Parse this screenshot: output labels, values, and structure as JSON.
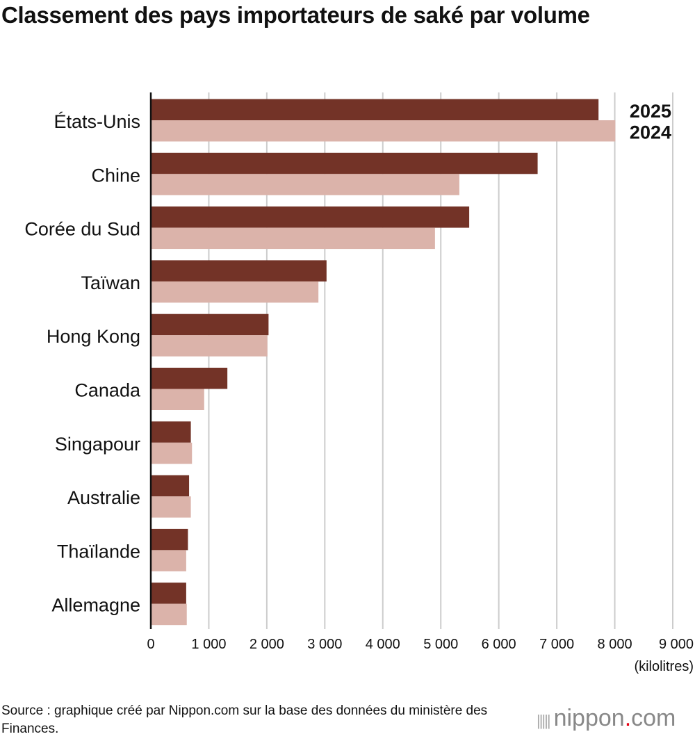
{
  "title": "Classement des pays importateurs de saké par volume",
  "source": "Source : graphique créé par Nippon.com sur la base des données du ministère des Finances.",
  "logo": {
    "text_main": "nippon",
    "text_dot": ".",
    "text_end": "com"
  },
  "colors": {
    "2025": "#733327",
    "2024": "#dbb3aa",
    "grid": "#cccccc",
    "axis": "#111111"
  },
  "chart_data": {
    "type": "bar",
    "orientation": "horizontal",
    "title": "Classement des pays importateurs de saké par volume",
    "xlabel": "(kilolitres)",
    "xlim": [
      0,
      9000
    ],
    "xticks": [
      0,
      1000,
      2000,
      3000,
      4000,
      5000,
      6000,
      7000,
      8000,
      9000
    ],
    "xtick_labels": [
      "0",
      "1 000",
      "2 000",
      "3 000",
      "4 000",
      "5 000",
      "6 000",
      "7 000",
      "8 000",
      "9 000"
    ],
    "grid": true,
    "legend": "labels at end of top bars (top-right)",
    "categories": [
      "États-Unis",
      "Chine",
      "Corée du Sud",
      "Taïwan",
      "Hong Kong",
      "Canada",
      "Singapour",
      "Australie",
      "Thaïlande",
      "Allemagne"
    ],
    "series": [
      {
        "name": "2025",
        "values": [
          7720,
          6670,
          5490,
          3030,
          2030,
          1320,
          690,
          660,
          640,
          610
        ]
      },
      {
        "name": "2024",
        "values": [
          8010,
          5320,
          4900,
          2890,
          2010,
          920,
          710,
          690,
          610,
          620
        ]
      }
    ]
  }
}
